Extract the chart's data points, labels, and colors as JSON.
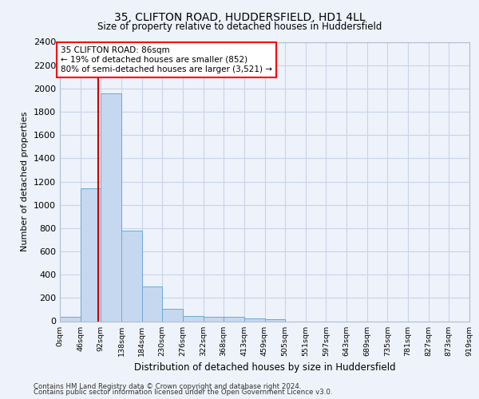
{
  "title_line1": "35, CLIFTON ROAD, HUDDERSFIELD, HD1 4LL",
  "title_line2": "Size of property relative to detached houses in Huddersfield",
  "xlabel": "Distribution of detached houses by size in Huddersfield",
  "ylabel": "Number of detached properties",
  "footer_line1": "Contains HM Land Registry data © Crown copyright and database right 2024.",
  "footer_line2": "Contains public sector information licensed under the Open Government Licence v3.0.",
  "bin_labels": [
    "0sqm",
    "46sqm",
    "92sqm",
    "138sqm",
    "184sqm",
    "230sqm",
    "276sqm",
    "322sqm",
    "368sqm",
    "413sqm",
    "459sqm",
    "505sqm",
    "551sqm",
    "597sqm",
    "643sqm",
    "689sqm",
    "735sqm",
    "781sqm",
    "827sqm",
    "873sqm",
    "919sqm"
  ],
  "bar_values": [
    35,
    1140,
    1960,
    775,
    300,
    105,
    48,
    40,
    35,
    22,
    15,
    0,
    0,
    0,
    0,
    0,
    0,
    0,
    0,
    0
  ],
  "bar_color": "#c5d8f0",
  "bar_edge_color": "#6aaad4",
  "grid_color": "#c8d4e8",
  "annotation_line1": "35 CLIFTON ROAD: 86sqm",
  "annotation_line2": "← 19% of detached houses are smaller (852)",
  "annotation_line3": "80% of semi-detached houses are larger (3,521) →",
  "property_line_color": "#cc0000",
  "ylim_max": 2400,
  "ytick_step": 200,
  "background_color": "#eef2fa",
  "bin_width": 46,
  "n_bins": 20
}
